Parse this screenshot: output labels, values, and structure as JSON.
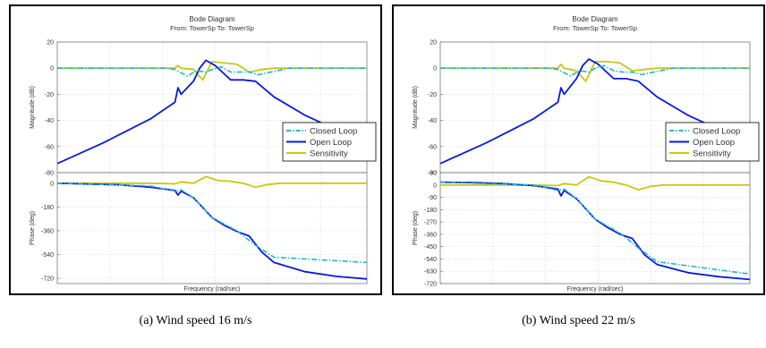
{
  "chart_data": [
    {
      "type": "line",
      "title": "Bode Diagram",
      "subtitle": "From: TowerSp  To: TowerSp",
      "xlabel": "Frequency  (rad/sec)",
      "xscale": "log",
      "grid": true,
      "legend_position": "right",
      "caption": "(a) Wind speed 16 m/s",
      "magnitude": {
        "ylabel": "Magnitude (dB)",
        "ylim": [
          -80,
          20
        ],
        "yticks": [
          20,
          0,
          -20,
          -40,
          -60,
          -80
        ],
        "series": [
          {
            "name": "Closed Loop",
            "color": "#22b8c8",
            "style": "dashdot",
            "x": [
              0,
              0.3,
              0.35,
              0.38,
              0.42,
              0.45,
              0.48,
              0.5,
              0.53,
              0.56,
              0.59,
              0.62,
              0.65,
              0.75,
              1
            ],
            "y": [
              0,
              0,
              0,
              -1,
              -6,
              -2,
              -3,
              -1,
              1,
              -3,
              -3,
              -3,
              -5,
              0,
              0
            ]
          },
          {
            "name": "Open Loop",
            "color": "#0a1ad8",
            "style": "solid",
            "x": [
              0,
              0.15,
              0.3,
              0.38,
              0.39,
              0.4,
              0.44,
              0.46,
              0.48,
              0.51,
              0.56,
              0.6,
              0.64,
              0.7,
              0.8,
              0.9,
              1
            ],
            "y": [
              -73,
              -57,
              -39,
              -26,
              -15,
              -20,
              -10,
              0,
              6,
              2,
              -9,
              -9,
              -10,
              -22,
              -36,
              -47,
              -57
            ]
          },
          {
            "name": "Sensitivity",
            "color": "#c8c814",
            "style": "solid",
            "x": [
              0,
              0.2,
              0.3,
              0.38,
              0.39,
              0.4,
              0.44,
              0.47,
              0.5,
              0.54,
              0.58,
              0.62,
              0.66,
              0.7,
              1
            ],
            "y": [
              0,
              0,
              0,
              0,
              2,
              0,
              -1,
              -9,
              5,
              4,
              3,
              -3,
              -1,
              0,
              0
            ]
          }
        ]
      },
      "phase": {
        "ylabel": "Phase (deg)",
        "ylim": [
          -760,
          80
        ],
        "yticks": [
          0,
          -180,
          -360,
          -540,
          -720
        ],
        "series": [
          {
            "name": "Closed Loop",
            "color": "#22b8c8",
            "style": "dashdot",
            "x": [
              0,
              0.3,
              0.38,
              0.4,
              0.44,
              0.5,
              0.58,
              0.64,
              0.7,
              1
            ],
            "y": [
              0,
              -20,
              -60,
              -50,
              -110,
              -260,
              -360,
              -470,
              -560,
              -600
            ]
          },
          {
            "name": "Open Loop",
            "color": "#0a1ad8",
            "style": "solid",
            "x": [
              0,
              0.2,
              0.3,
              0.38,
              0.39,
              0.4,
              0.44,
              0.46,
              0.5,
              0.54,
              0.58,
              0.62,
              0.64,
              0.66,
              0.7,
              0.8,
              0.9,
              1
            ],
            "y": [
              0,
              -12,
              -30,
              -55,
              -90,
              -60,
              -110,
              -160,
              -260,
              -320,
              -365,
              -400,
              -460,
              -520,
              -600,
              -670,
              -705,
              -725
            ]
          },
          {
            "name": "Sensitivity",
            "color": "#c8c814",
            "style": "solid",
            "x": [
              0,
              0.3,
              0.38,
              0.4,
              0.44,
              0.48,
              0.52,
              0.56,
              0.6,
              0.64,
              0.68,
              0.72,
              1
            ],
            "y": [
              0,
              0,
              -5,
              10,
              0,
              50,
              20,
              15,
              0,
              -30,
              -10,
              0,
              0
            ]
          }
        ]
      }
    },
    {
      "type": "line",
      "title": "Bode Diagram",
      "subtitle": "From: TowerSp  To: TowerSp",
      "xlabel": "Frequency  (rad/sec)",
      "xscale": "log",
      "grid": true,
      "legend_position": "right",
      "caption": "(b) Wind speed 22 m/s",
      "magnitude": {
        "ylabel": "Magnitude (dB)",
        "ylim": [
          -80,
          20
        ],
        "yticks": [
          20,
          0,
          -20,
          -40,
          -60,
          -80
        ],
        "series": [
          {
            "name": "Closed Loop",
            "color": "#22b8c8",
            "style": "dashdot",
            "x": [
              0,
              0.3,
              0.35,
              0.38,
              0.42,
              0.45,
              0.48,
              0.5,
              0.53,
              0.56,
              0.59,
              0.62,
              0.65,
              0.75,
              1
            ],
            "y": [
              0,
              0,
              0,
              -1,
              -6,
              -2,
              -3,
              0,
              2,
              -2,
              -3,
              -3,
              -5,
              0,
              0
            ]
          },
          {
            "name": "Open Loop",
            "color": "#0a1ad8",
            "style": "solid",
            "x": [
              0,
              0.15,
              0.3,
              0.38,
              0.39,
              0.4,
              0.44,
              0.46,
              0.48,
              0.51,
              0.56,
              0.6,
              0.64,
              0.7,
              0.8,
              0.9,
              1
            ],
            "y": [
              -73,
              -57,
              -39,
              -26,
              -15,
              -20,
              -8,
              2,
              7,
              3,
              -8,
              -8,
              -10,
              -22,
              -36,
              -47,
              -57
            ]
          },
          {
            "name": "Sensitivity",
            "color": "#c8c814",
            "style": "solid",
            "x": [
              0,
              0.2,
              0.3,
              0.38,
              0.39,
              0.4,
              0.44,
              0.47,
              0.5,
              0.54,
              0.58,
              0.62,
              0.66,
              0.7,
              1
            ],
            "y": [
              0,
              0,
              0,
              0,
              3,
              0,
              -2,
              -10,
              5,
              5,
              4,
              -2,
              -1,
              0,
              0
            ]
          }
        ]
      },
      "phase": {
        "ylabel": "Phase (deg)",
        "ylim": [
          -720,
          90
        ],
        "yticks": [
          90,
          0,
          -90,
          -180,
          -270,
          -360,
          -450,
          -540,
          -630,
          -720
        ],
        "ytick_labels": [
          "90",
          "0",
          "-90",
          "-180",
          "-270",
          "-360",
          "-450",
          "-540",
          "-630",
          "-720"
        ],
        "series": [
          {
            "name": "Closed Loop",
            "color": "#22b8c8",
            "style": "dashdot",
            "x": [
              0,
              0.3,
              0.38,
              0.4,
              0.44,
              0.5,
              0.58,
              0.64,
              0.7,
              1
            ],
            "y": [
              20,
              0,
              -40,
              -30,
              -100,
              -250,
              -350,
              -460,
              -560,
              -650
            ]
          },
          {
            "name": "Open Loop",
            "color": "#0a1ad8",
            "style": "solid",
            "x": [
              0,
              0.1,
              0.2,
              0.3,
              0.38,
              0.39,
              0.4,
              0.44,
              0.46,
              0.5,
              0.54,
              0.58,
              0.62,
              0.64,
              0.66,
              0.7,
              0.8,
              0.9,
              1
            ],
            "y": [
              20,
              18,
              10,
              -5,
              -30,
              -80,
              -40,
              -100,
              -150,
              -250,
              -310,
              -360,
              -390,
              -450,
              -510,
              -580,
              -640,
              -670,
              -690
            ]
          },
          {
            "name": "Sensitivity",
            "color": "#c8c814",
            "style": "solid",
            "x": [
              0,
              0.3,
              0.38,
              0.4,
              0.44,
              0.48,
              0.52,
              0.56,
              0.6,
              0.64,
              0.68,
              0.72,
              1
            ],
            "y": [
              0,
              0,
              -5,
              10,
              0,
              60,
              30,
              20,
              0,
              -35,
              -10,
              0,
              0
            ]
          }
        ]
      }
    }
  ]
}
